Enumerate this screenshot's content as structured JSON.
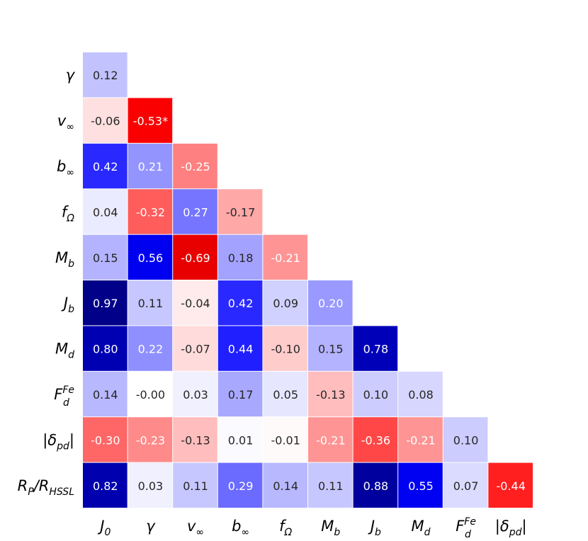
{
  "chart_data": {
    "type": "heatmap",
    "title": "",
    "colormap": "bwr",
    "vlim": [
      -1,
      1
    ],
    "grid": false,
    "legend": "none",
    "row_labels": [
      {
        "base": "γ",
        "sub": "",
        "sup": ""
      },
      {
        "base": "v",
        "sub": "∞",
        "sup": ""
      },
      {
        "base": "b",
        "sub": "∞",
        "sup": ""
      },
      {
        "base": "f",
        "sub": "Ω",
        "sup": ""
      },
      {
        "base": "M",
        "sub": "b",
        "sup": ""
      },
      {
        "base": "J",
        "sub": "b",
        "sup": ""
      },
      {
        "base": "M",
        "sub": "d",
        "sup": ""
      },
      {
        "base": "F",
        "sub": "d",
        "sup": "Fe"
      },
      {
        "base": "|δ",
        "sub": "pd",
        "sup": "",
        "suffix": "|"
      },
      {
        "base": "R",
        "sub": "P",
        "sup": "",
        "suffix": "/R",
        "sub2": "HSSL"
      }
    ],
    "col_labels": [
      {
        "base": "J",
        "sub": "0",
        "sup": ""
      },
      {
        "base": "γ",
        "sub": "",
        "sup": ""
      },
      {
        "base": "v",
        "sub": "∞",
        "sup": ""
      },
      {
        "base": "b",
        "sub": "∞",
        "sup": ""
      },
      {
        "base": "f",
        "sub": "Ω",
        "sup": ""
      },
      {
        "base": "M",
        "sub": "b",
        "sup": ""
      },
      {
        "base": "J",
        "sub": "b",
        "sup": ""
      },
      {
        "base": "M",
        "sub": "d",
        "sup": ""
      },
      {
        "base": "F",
        "sub": "d",
        "sup": "Fe"
      },
      {
        "base": "|δ",
        "sub": "pd",
        "sup": "",
        "suffix": "|"
      }
    ],
    "values": [
      [
        0.12
      ],
      [
        -0.06,
        -0.53
      ],
      [
        0.42,
        0.21,
        -0.25
      ],
      [
        0.04,
        -0.32,
        0.27,
        -0.17
      ],
      [
        0.15,
        0.56,
        -0.69,
        0.18,
        -0.21
      ],
      [
        0.97,
        0.11,
        -0.04,
        0.42,
        0.09,
        0.2
      ],
      [
        0.8,
        0.22,
        -0.07,
        0.44,
        -0.1,
        0.15,
        0.78
      ],
      [
        0.14,
        -0.0,
        0.03,
        0.17,
        0.05,
        -0.13,
        0.1,
        0.08
      ],
      [
        -0.3,
        -0.23,
        -0.13,
        0.01,
        -0.01,
        -0.21,
        -0.36,
        -0.21,
        0.1
      ],
      [
        0.82,
        0.03,
        0.11,
        0.29,
        0.14,
        0.11,
        0.88,
        0.55,
        0.07,
        -0.44
      ]
    ],
    "labels": [
      [
        "0.12"
      ],
      [
        "-0.06",
        "-0.53*"
      ],
      [
        "0.42",
        "0.21",
        "-0.25"
      ],
      [
        "0.04",
        "-0.32",
        "0.27",
        "-0.17"
      ],
      [
        "0.15",
        "0.56",
        "-0.69",
        "0.18",
        "-0.21"
      ],
      [
        "0.97",
        "0.11",
        "-0.04",
        "0.42",
        "0.09",
        "0.20"
      ],
      [
        "0.80",
        "0.22",
        "-0.07",
        "0.44",
        "-0.10",
        "0.15",
        "0.78"
      ],
      [
        "0.14",
        "-0.00",
        "0.03",
        "0.17",
        "0.05",
        "-0.13",
        "0.10",
        "0.08"
      ],
      [
        "-0.30",
        "-0.23",
        "-0.13",
        "0.01",
        "-0.01",
        "-0.21",
        "-0.36",
        "-0.21",
        "0.10"
      ],
      [
        "0.82",
        "0.03",
        "0.11",
        "0.29",
        "0.14",
        "0.11",
        "0.88",
        "0.55",
        "0.07",
        "-0.44"
      ]
    ]
  }
}
